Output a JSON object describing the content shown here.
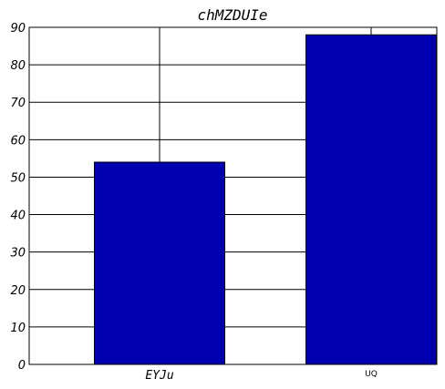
{
  "chart_data": {
    "type": "bar",
    "title": "chMZDUIe",
    "categories": [
      "EYJu",
      "UQ"
    ],
    "values": [
      54,
      88
    ],
    "xlabel": "",
    "ylabel": "",
    "ylim": [
      0,
      90
    ],
    "yticks": [
      0,
      10,
      20,
      30,
      40,
      50,
      60,
      70,
      80,
      90
    ],
    "bar_color": "#0000b0",
    "grid": true,
    "legend": "none"
  }
}
